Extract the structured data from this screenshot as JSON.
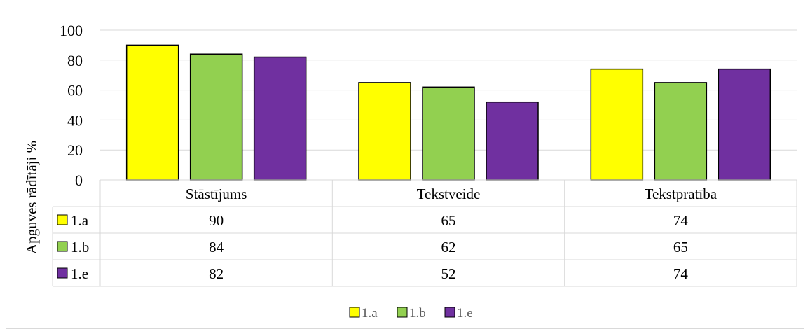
{
  "chart_data": {
    "type": "bar",
    "categories": [
      "Stāstījums",
      "Tekstveide",
      "Tekstpratība"
    ],
    "series": [
      {
        "name": "1.a",
        "values": [
          90,
          65,
          74
        ],
        "color": "#FFFF00"
      },
      {
        "name": "1.b",
        "values": [
          84,
          62,
          65
        ],
        "color": "#92D050"
      },
      {
        "name": "1.e",
        "values": [
          82,
          52,
          74
        ],
        "color": "#7030A0"
      }
    ],
    "ylabel": "Apguves rādītāji %",
    "ylim": [
      0,
      100
    ],
    "yticks": [
      0,
      20,
      40,
      60,
      80,
      100
    ],
    "grid": true,
    "data_table": true,
    "legend_position": "bottom"
  }
}
